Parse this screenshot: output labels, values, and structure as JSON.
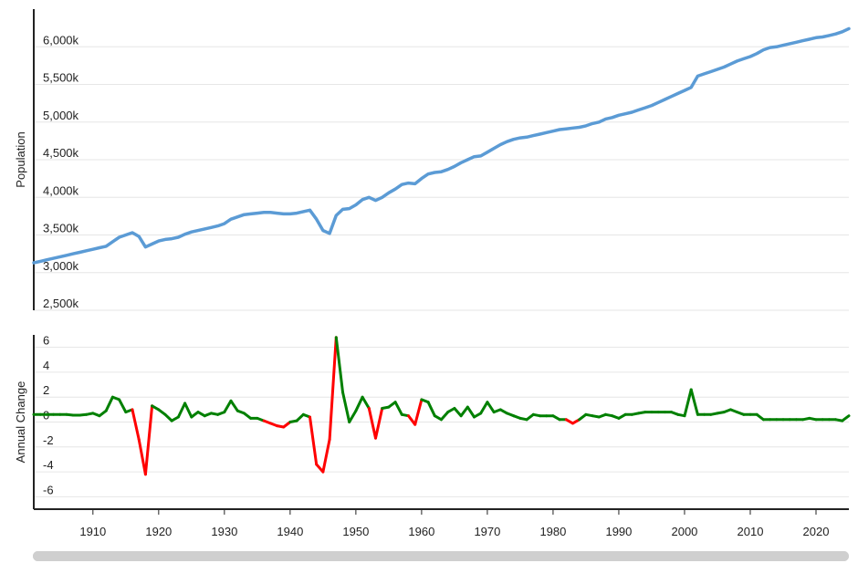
{
  "chart_data": [
    {
      "type": "line",
      "ylabel": "Population",
      "ylim": [
        2500,
        6500
      ],
      "yticks": [
        2500,
        3000,
        3500,
        4000,
        4500,
        5000,
        5500,
        6000
      ],
      "ytick_labels": [
        "2,500k",
        "3,000k",
        "3,500k",
        "4,000k",
        "4,500k",
        "5,000k",
        "5,500k",
        "6,000k"
      ],
      "xlim": [
        1901,
        2025
      ],
      "color": "#5b9bd5",
      "grid": true,
      "series": [
        {
          "x": [
            1901,
            1902,
            1903,
            1904,
            1905,
            1906,
            1907,
            1908,
            1909,
            1910,
            1911,
            1912,
            1913,
            1914,
            1915,
            1916,
            1917,
            1918,
            1919,
            1920,
            1921,
            1922,
            1923,
            1924,
            1925,
            1926,
            1927,
            1928,
            1929,
            1930,
            1931,
            1932,
            1933,
            1934,
            1935,
            1936,
            1937,
            1938,
            1939,
            1940,
            1941,
            1942,
            1943,
            1944,
            1945,
            1946,
            1947,
            1948,
            1949,
            1950,
            1951,
            1952,
            1953,
            1954,
            1955,
            1956,
            1957,
            1958,
            1959,
            1960,
            1961,
            1962,
            1963,
            1964,
            1965,
            1966,
            1967,
            1968,
            1969,
            1970,
            1971,
            1972,
            1973,
            1974,
            1975,
            1976,
            1977,
            1978,
            1979,
            1980,
            1981,
            1982,
            1983,
            1984,
            1985,
            1986,
            1987,
            1988,
            1989,
            1990,
            1991,
            1992,
            1993,
            1994,
            1995,
            1996,
            1997,
            1998,
            1999,
            2000,
            2001,
            2002,
            2003,
            2004,
            2005,
            2006,
            2007,
            2008,
            2009,
            2010,
            2011,
            2012,
            2013,
            2014,
            2015,
            2016,
            2017,
            2018,
            2019,
            2020,
            2021,
            2022,
            2023,
            2024,
            2025
          ],
          "y": [
            3130,
            3150,
            3170,
            3190,
            3210,
            3230,
            3250,
            3270,
            3290,
            3310,
            3330,
            3350,
            3410,
            3470,
            3500,
            3530,
            3480,
            3340,
            3380,
            3420,
            3440,
            3450,
            3470,
            3510,
            3540,
            3560,
            3580,
            3600,
            3620,
            3650,
            3710,
            3740,
            3770,
            3780,
            3790,
            3800,
            3800,
            3790,
            3780,
            3780,
            3790,
            3810,
            3830,
            3710,
            3560,
            3520,
            3760,
            3840,
            3850,
            3900,
            3970,
            4000,
            3960,
            4000,
            4060,
            4110,
            4170,
            4190,
            4180,
            4250,
            4310,
            4330,
            4340,
            4370,
            4410,
            4460,
            4500,
            4540,
            4550,
            4600,
            4650,
            4700,
            4740,
            4770,
            4790,
            4800,
            4820,
            4840,
            4860,
            4880,
            4900,
            4910,
            4920,
            4930,
            4950,
            4980,
            5000,
            5040,
            5060,
            5090,
            5110,
            5130,
            5160,
            5190,
            5220,
            5260,
            5300,
            5340,
            5380,
            5420,
            5460,
            5610,
            5640,
            5670,
            5700,
            5730,
            5770,
            5810,
            5840,
            5870,
            5910,
            5960,
            5990,
            6000,
            6020,
            6040,
            6060,
            6080,
            6100,
            6120,
            6130,
            6150,
            6170,
            6200,
            6240
          ]
        }
      ]
    },
    {
      "type": "line",
      "ylabel": "Annual Change",
      "ylim": [
        -7,
        7
      ],
      "yticks": [
        -6,
        -4,
        -2,
        0,
        2,
        4,
        6
      ],
      "ytick_labels": [
        "-6",
        "-4",
        "-2",
        "0",
        "2",
        "4",
        "6"
      ],
      "xlim": [
        1901,
        2025
      ],
      "xticks": [
        1910,
        1920,
        1930,
        1940,
        1950,
        1960,
        1970,
        1980,
        1990,
        2000,
        2010,
        2020
      ],
      "xtick_labels": [
        "1910",
        "1920",
        "1930",
        "1940",
        "1950",
        "1960",
        "1970",
        "1980",
        "1990",
        "2000",
        "2010",
        "2020"
      ],
      "positive_color": "#008000",
      "negative_color": "#ff0000",
      "grid": true,
      "series": [
        {
          "x": [
            1901,
            1902,
            1903,
            1904,
            1905,
            1906,
            1907,
            1908,
            1909,
            1910,
            1911,
            1912,
            1913,
            1914,
            1915,
            1916,
            1917,
            1918,
            1919,
            1920,
            1921,
            1922,
            1923,
            1924,
            1925,
            1926,
            1927,
            1928,
            1929,
            1930,
            1931,
            1932,
            1933,
            1934,
            1935,
            1936,
            1937,
            1938,
            1939,
            1940,
            1941,
            1942,
            1943,
            1944,
            1945,
            1946,
            1947,
            1948,
            1949,
            1950,
            1951,
            1952,
            1953,
            1954,
            1955,
            1956,
            1957,
            1958,
            1959,
            1960,
            1961,
            1962,
            1963,
            1964,
            1965,
            1966,
            1967,
            1968,
            1969,
            1970,
            1971,
            1972,
            1973,
            1974,
            1975,
            1976,
            1977,
            1978,
            1979,
            1980,
            1981,
            1982,
            1983,
            1984,
            1985,
            1986,
            1987,
            1988,
            1989,
            1990,
            1991,
            1992,
            1993,
            1994,
            1995,
            1996,
            1997,
            1998,
            1999,
            2000,
            2001,
            2002,
            2003,
            2004,
            2005,
            2006,
            2007,
            2008,
            2009,
            2010,
            2011,
            2012,
            2013,
            2014,
            2015,
            2016,
            2017,
            2018,
            2019,
            2020,
            2021,
            2022,
            2023,
            2024,
            2025
          ],
          "y": [
            0.6,
            0.6,
            0.6,
            0.6,
            0.6,
            0.6,
            0.55,
            0.55,
            0.6,
            0.7,
            0.5,
            0.9,
            2.0,
            1.8,
            0.8,
            1.0,
            -1.4,
            -4.2,
            1.3,
            1.0,
            0.6,
            0.1,
            0.4,
            1.5,
            0.4,
            0.8,
            0.5,
            0.7,
            0.6,
            0.8,
            1.7,
            0.9,
            0.7,
            0.3,
            0.3,
            0.1,
            -0.1,
            -0.3,
            -0.4,
            0.0,
            0.1,
            0.6,
            0.4,
            -3.4,
            -4.0,
            -1.4,
            6.8,
            2.4,
            0.0,
            0.9,
            2.0,
            1.1,
            -1.3,
            1.1,
            1.2,
            1.6,
            0.6,
            0.5,
            -0.2,
            1.8,
            1.6,
            0.5,
            0.2,
            0.8,
            1.1,
            0.5,
            1.2,
            0.4,
            0.7,
            1.6,
            0.8,
            1.0,
            0.7,
            0.5,
            0.3,
            0.2,
            0.6,
            0.5,
            0.5,
            0.5,
            0.2,
            0.2,
            -0.1,
            0.2,
            0.6,
            0.5,
            0.4,
            0.6,
            0.5,
            0.3,
            0.6,
            0.6,
            0.7,
            0.8,
            0.8,
            0.8,
            0.8,
            0.8,
            0.6,
            0.5,
            2.6,
            0.6,
            0.6,
            0.6,
            0.7,
            0.8,
            1.0,
            0.8,
            0.6,
            0.6,
            0.6,
            0.2,
            0.2,
            0.2,
            0.2,
            0.2,
            0.2,
            0.2,
            0.3,
            0.2,
            0.2,
            0.2,
            0.2,
            0.1,
            0.5
          ]
        }
      ]
    }
  ]
}
